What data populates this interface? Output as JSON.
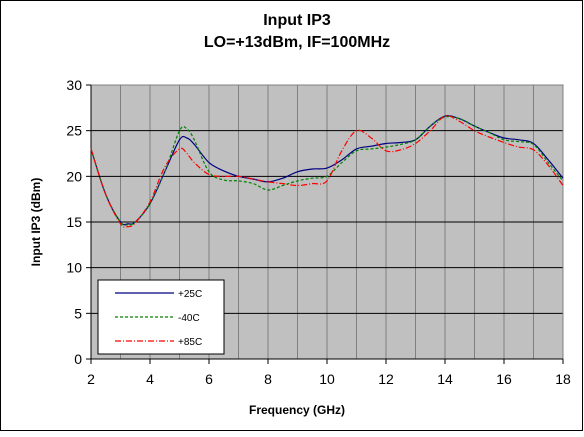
{
  "chart_data": {
    "type": "line",
    "title": "Input IP3",
    "subtitle": "LO=+13dBm, IF=100MHz",
    "xlabel": "Frequency (GHz)",
    "ylabel": "Input IP3 (dBm)",
    "xlim": [
      2,
      18
    ],
    "ylim": [
      0,
      30
    ],
    "xticks": [
      2,
      4,
      6,
      8,
      10,
      12,
      14,
      16,
      18
    ],
    "yticks": [
      0,
      5,
      10,
      15,
      20,
      25,
      30
    ],
    "x_minor_step": 1,
    "grid": true,
    "legend_position": "bottom-left",
    "plot_background": "#c0c0c0",
    "series": [
      {
        "name": "+25C",
        "color": "#000080",
        "dash": "solid",
        "x": [
          2,
          2.5,
          3,
          3.25,
          3.5,
          4,
          4.5,
          5,
          5.25,
          5.5,
          6,
          6.5,
          7,
          7.5,
          8,
          8.5,
          9,
          9.5,
          10,
          10.5,
          11,
          11.5,
          12,
          12.5,
          13,
          13.5,
          14,
          14.5,
          15,
          15.5,
          16,
          16.5,
          17,
          17.5,
          18
        ],
        "y": [
          23.0,
          18.0,
          15.0,
          14.8,
          15.0,
          17.0,
          20.5,
          24.0,
          24.2,
          23.5,
          21.5,
          20.6,
          20.0,
          19.7,
          19.4,
          19.8,
          20.5,
          20.8,
          20.9,
          21.8,
          23.0,
          23.3,
          23.6,
          23.7,
          24.0,
          25.5,
          26.6,
          26.3,
          25.5,
          24.8,
          24.2,
          24.0,
          23.6,
          21.8,
          19.8
        ]
      },
      {
        "name": "-40C",
        "color": "#008000",
        "dash": "3,2",
        "x": [
          2,
          2.5,
          3,
          3.25,
          3.5,
          4,
          4.5,
          5,
          5.25,
          5.5,
          6,
          6.5,
          7,
          7.5,
          8,
          8.5,
          9,
          9.5,
          10,
          10.5,
          11,
          11.5,
          12,
          12.5,
          13,
          13.5,
          14,
          14.5,
          15,
          15.5,
          16,
          16.5,
          17,
          17.5,
          18
        ],
        "y": [
          23.0,
          18.0,
          15.0,
          14.7,
          15.0,
          17.0,
          20.5,
          25.0,
          25.2,
          24.0,
          20.5,
          19.6,
          19.5,
          19.2,
          18.5,
          19.0,
          19.5,
          19.8,
          20.0,
          21.5,
          22.8,
          23.0,
          23.2,
          23.5,
          24.0,
          25.5,
          26.5,
          26.3,
          25.5,
          24.8,
          24.0,
          23.8,
          23.5,
          21.5,
          19.5
        ]
      },
      {
        "name": "+85C",
        "color": "#ff0000",
        "dash": "6,2,1,2",
        "x": [
          2,
          2.5,
          3,
          3.25,
          3.5,
          4,
          4.5,
          5,
          5.25,
          5.5,
          6,
          6.5,
          7,
          7.5,
          8,
          8.5,
          9,
          9.5,
          10,
          10.5,
          11,
          11.5,
          12,
          12.5,
          13,
          13.5,
          14,
          14.5,
          15,
          15.5,
          16,
          16.5,
          17,
          17.5,
          18
        ],
        "y": [
          23.0,
          18.0,
          14.8,
          14.5,
          14.9,
          17.2,
          21.0,
          23.0,
          22.5,
          21.5,
          20.2,
          20.0,
          20.0,
          19.7,
          19.4,
          19.2,
          19.0,
          19.2,
          19.5,
          22.8,
          25.0,
          24.2,
          22.8,
          22.9,
          23.6,
          25.0,
          26.6,
          26.0,
          25.0,
          24.3,
          23.7,
          23.2,
          22.9,
          21.2,
          19.0
        ]
      }
    ]
  }
}
